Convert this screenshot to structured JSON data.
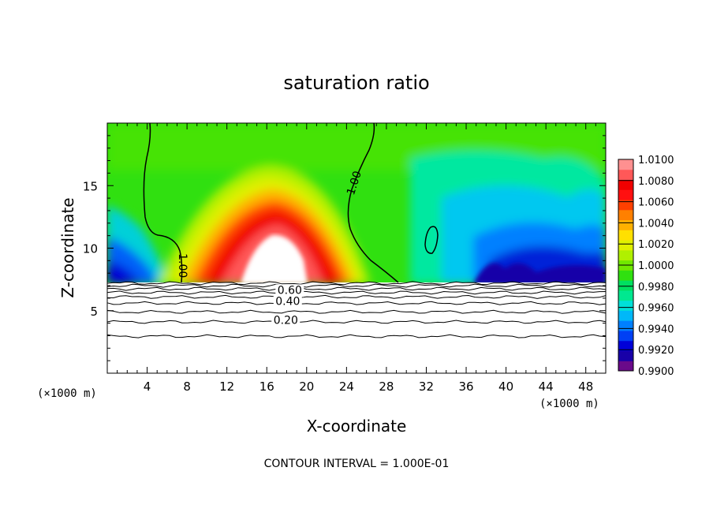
{
  "chart_data": {
    "type": "contour",
    "title": "saturation ratio",
    "xlabel": "X-coordinate",
    "ylabel": "Z-coordinate",
    "x_unit": "(×1000 m)",
    "y_unit": "(×1000 m)",
    "xlim": [
      0,
      50
    ],
    "ylim": [
      0,
      20
    ],
    "x_ticks": [
      4,
      8,
      12,
      16,
      20,
      24,
      28,
      32,
      36,
      40,
      44,
      48
    ],
    "x_tick_labels": [
      "4",
      "8",
      "12",
      "16",
      "20",
      "24",
      "28",
      "32",
      "36",
      "40",
      "44",
      "48"
    ],
    "y_ticks": [
      5,
      10,
      15
    ],
    "y_tick_labels": [
      "5",
      "10",
      "15"
    ],
    "colorbar": {
      "min": 0.99,
      "max": 1.01,
      "tick_values": [
        0.99,
        0.992,
        0.994,
        0.996,
        0.998,
        1.0,
        1.002,
        1.004,
        1.006,
        1.008,
        1.01
      ],
      "tick_labels": [
        "0.9900",
        "0.9920",
        "0.9940",
        "0.9960",
        "0.9980",
        "1.0000",
        "1.0020",
        "1.0040",
        "1.0060",
        "1.0080",
        "1.0100"
      ],
      "colors": [
        "#6a0a8a",
        "#1800a8",
        "#0000d8",
        "#0040f4",
        "#0080ff",
        "#00b8f8",
        "#00e0d8",
        "#00e890",
        "#00e060",
        "#30e010",
        "#70e800",
        "#b0f000",
        "#e0f000",
        "#ffe000",
        "#ffb000",
        "#ff8000",
        "#ff4000",
        "#ff1010",
        "#f00000",
        "#ff5858",
        "#ff9090"
      ]
    },
    "contour_labels": [
      {
        "text": "1.00",
        "x": 7.5,
        "z": 8.6,
        "angle": 90
      },
      {
        "text": "1.00",
        "x": 24.8,
        "z": 15.2,
        "angle": -72
      },
      {
        "text": "0.60",
        "x": 18.3,
        "z": 6.6,
        "angle": 0
      },
      {
        "text": "0.40",
        "x": 18.1,
        "z": 5.7,
        "angle": 0
      },
      {
        "text": "0.20",
        "x": 17.9,
        "z": 4.2,
        "angle": 0
      }
    ],
    "lower_contours": [
      {
        "level": 0.2,
        "z": 4.1
      },
      {
        "level": 0.3,
        "z": 4.9
      },
      {
        "level": 0.4,
        "z": 5.6
      },
      {
        "level": 0.5,
        "z": 6.1
      },
      {
        "level": 0.6,
        "z": 6.45
      },
      {
        "level": 0.7,
        "z": 6.75
      },
      {
        "level": 0.8,
        "z": 7.0
      },
      {
        "level": 0.9,
        "z": 7.2
      },
      {
        "level": 0.1,
        "z": 2.95
      }
    ],
    "footer": "CONTOUR INTERVAL = 1.000E-01"
  }
}
